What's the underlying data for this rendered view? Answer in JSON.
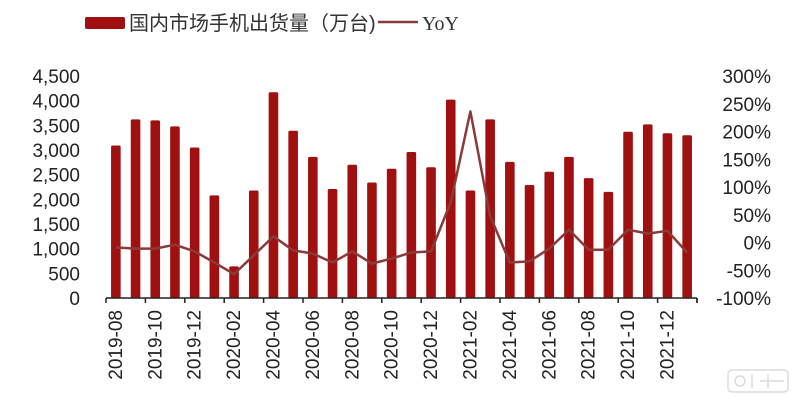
{
  "chart_data": {
    "type": "bar",
    "title": "",
    "legend_position": "top",
    "grid": false,
    "categories": [
      "2019-08",
      "2019-09",
      "2019-10",
      "2019-11",
      "2019-12",
      "2020-01",
      "2020-02",
      "2020-03",
      "2020-04",
      "2020-05",
      "2020-06",
      "2020-07",
      "2020-08",
      "2020-09",
      "2020-10",
      "2020-11",
      "2020-12",
      "2021-01",
      "2021-02",
      "2021-03",
      "2021-04",
      "2021-05",
      "2021-06",
      "2021-07",
      "2021-08",
      "2021-09",
      "2021-10",
      "2021-11",
      "2021-12",
      "2022-01"
    ],
    "x_tick_labels": [
      "2019-08",
      "2019-10",
      "2019-12",
      "2020-02",
      "2020-04",
      "2020-06",
      "2020-08",
      "2020-10",
      "2020-12",
      "2021-02",
      "2021-04",
      "2021-06",
      "2021-08",
      "2021-10",
      "2021-12"
    ],
    "series": [
      {
        "name": "国内市场手机出货量（万台)",
        "type": "bar",
        "axis": "left",
        "color": "#a01010",
        "values": [
          3090,
          3620,
          3600,
          3480,
          3050,
          2080,
          640,
          2180,
          4170,
          3390,
          2860,
          2210,
          2700,
          2340,
          2620,
          2960,
          2650,
          4020,
          2180,
          3620,
          2760,
          2290,
          2560,
          2860,
          2430,
          2150,
          3370,
          3520,
          3340,
          3300
        ]
      },
      {
        "name": "YoY",
        "type": "line",
        "axis": "right",
        "color": "#8b3a3a",
        "values": [
          -9,
          -11,
          -11,
          -4,
          -16,
          -36,
          -57,
          -23,
          11,
          -14,
          -20,
          -36,
          -16,
          -38,
          -29,
          -18,
          -16,
          73,
          236,
          48,
          -36,
          -34,
          -11,
          23,
          -13,
          -13,
          23,
          16,
          21,
          -18
        ]
      }
    ],
    "y_left": {
      "range": [
        0,
        4500
      ],
      "ticks": [
        "0",
        "500",
        "1,000",
        "1,500",
        "2,000",
        "2,500",
        "3,000",
        "3,500",
        "4,000",
        "4,500"
      ]
    },
    "y_right": {
      "range": [
        -100,
        300
      ],
      "ticks": [
        "-100%",
        "-50%",
        "0%",
        "50%",
        "100%",
        "150%",
        "200%",
        "250%",
        "300%"
      ]
    }
  }
}
